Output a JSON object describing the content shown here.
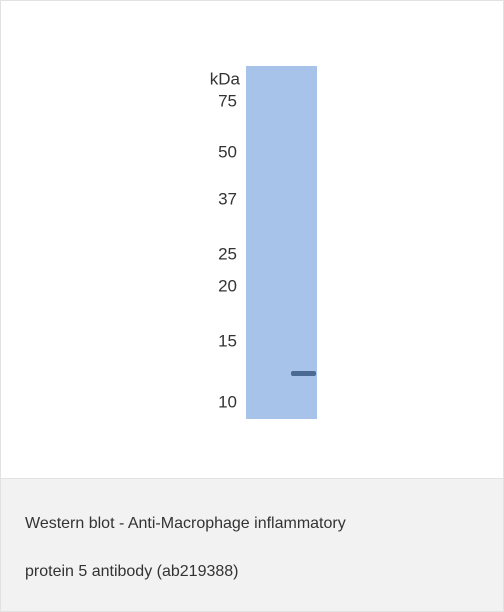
{
  "figure": {
    "unit_label": "kDa",
    "markers": [
      "75",
      "50",
      "37",
      "25",
      "20",
      "15",
      "10"
    ]
  },
  "caption": {
    "lines": [
      "Western blot - Anti-Macrophage inflammatory",
      "protein 5 antibody (ab219388)"
    ]
  }
}
